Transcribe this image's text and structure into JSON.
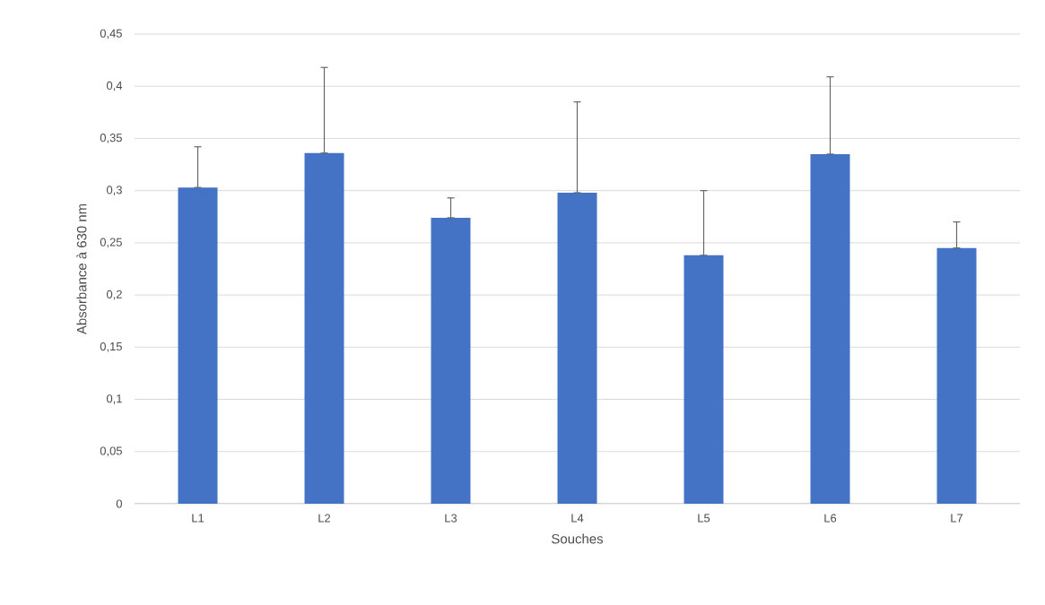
{
  "chart_data": {
    "type": "bar",
    "xlabel": "Souches",
    "ylabel": "Absorbance à 630 nm",
    "categories": [
      "L1",
      "L2",
      "L3",
      "L4",
      "L5",
      "L6",
      "L7"
    ],
    "values": [
      0.303,
      0.336,
      0.274,
      0.298,
      0.238,
      0.335,
      0.245
    ],
    "errors": [
      [
        0.303,
        0.342
      ],
      [
        0.336,
        0.418
      ],
      [
        0.274,
        0.293
      ],
      [
        0.298,
        0.385
      ],
      [
        0.238,
        0.3
      ],
      [
        0.335,
        0.409
      ],
      [
        0.245,
        0.27
      ]
    ],
    "color": "#4472c4",
    "ylim": [
      0,
      0.45
    ],
    "yticks": [
      0,
      {
        "value": 0.05,
        "label": "0,05"
      },
      {
        "value": 0.1,
        "label": "0,1"
      },
      {
        "value": 0.15,
        "label": "0,15"
      },
      {
        "value": 0.2,
        "label": "0,2"
      },
      {
        "value": 0.25,
        "label": "0,25"
      },
      {
        "value": 0.3,
        "label": "0,3"
      },
      {
        "value": 0.35,
        "label": "0,35"
      },
      {
        "value": 0.4,
        "label": "0,4"
      },
      {
        "value": 0.45,
        "label": "0,45"
      }
    ],
    "grid": "y"
  }
}
